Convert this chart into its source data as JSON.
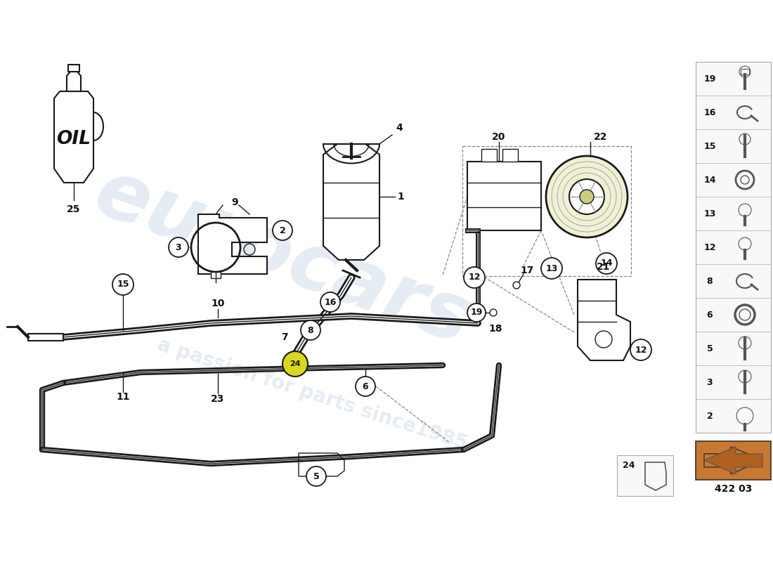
{
  "bg": "#ffffff",
  "dc": "#1a1a1a",
  "wm1": "#c8d5e8",
  "wm2": "#c8d5e8",
  "yellow": "#d8d820",
  "panel_bg": "#f5f5f5",
  "side_items": [
    "19",
    "16",
    "15",
    "14",
    "13",
    "12",
    "8",
    "6",
    "5",
    "3",
    "2"
  ],
  "part_code": "422 03"
}
